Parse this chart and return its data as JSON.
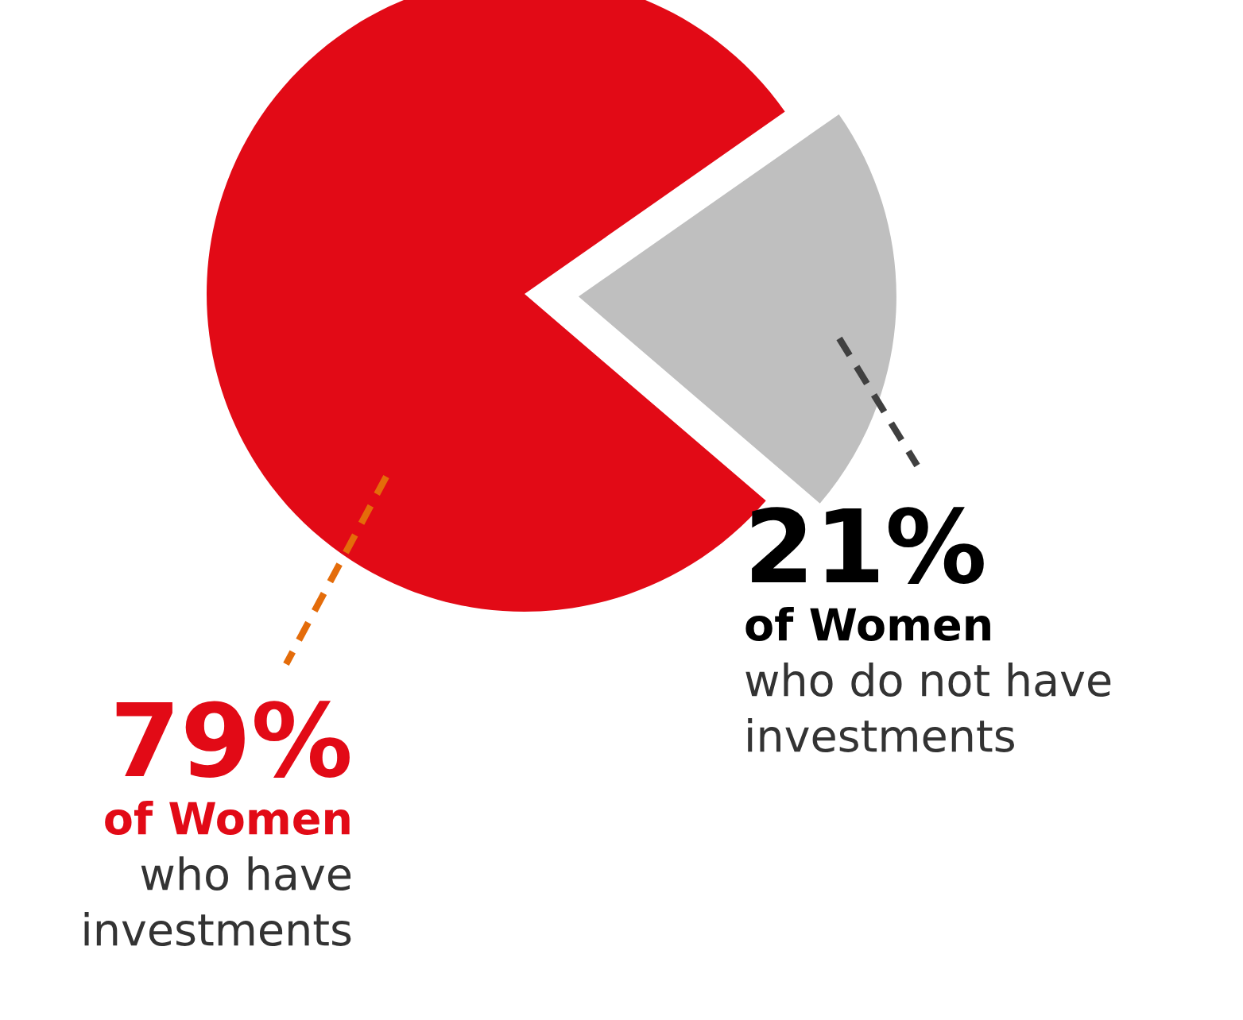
{
  "chart_data": {
    "type": "pie",
    "categories": [
      "of Women who have investments",
      "of Women who do not have investments"
    ],
    "values": [
      79,
      21
    ],
    "colors": [
      "#e20a16",
      "#bfbfbf"
    ],
    "value_labels": [
      "79%",
      "21%"
    ],
    "legend": false
  }
}
